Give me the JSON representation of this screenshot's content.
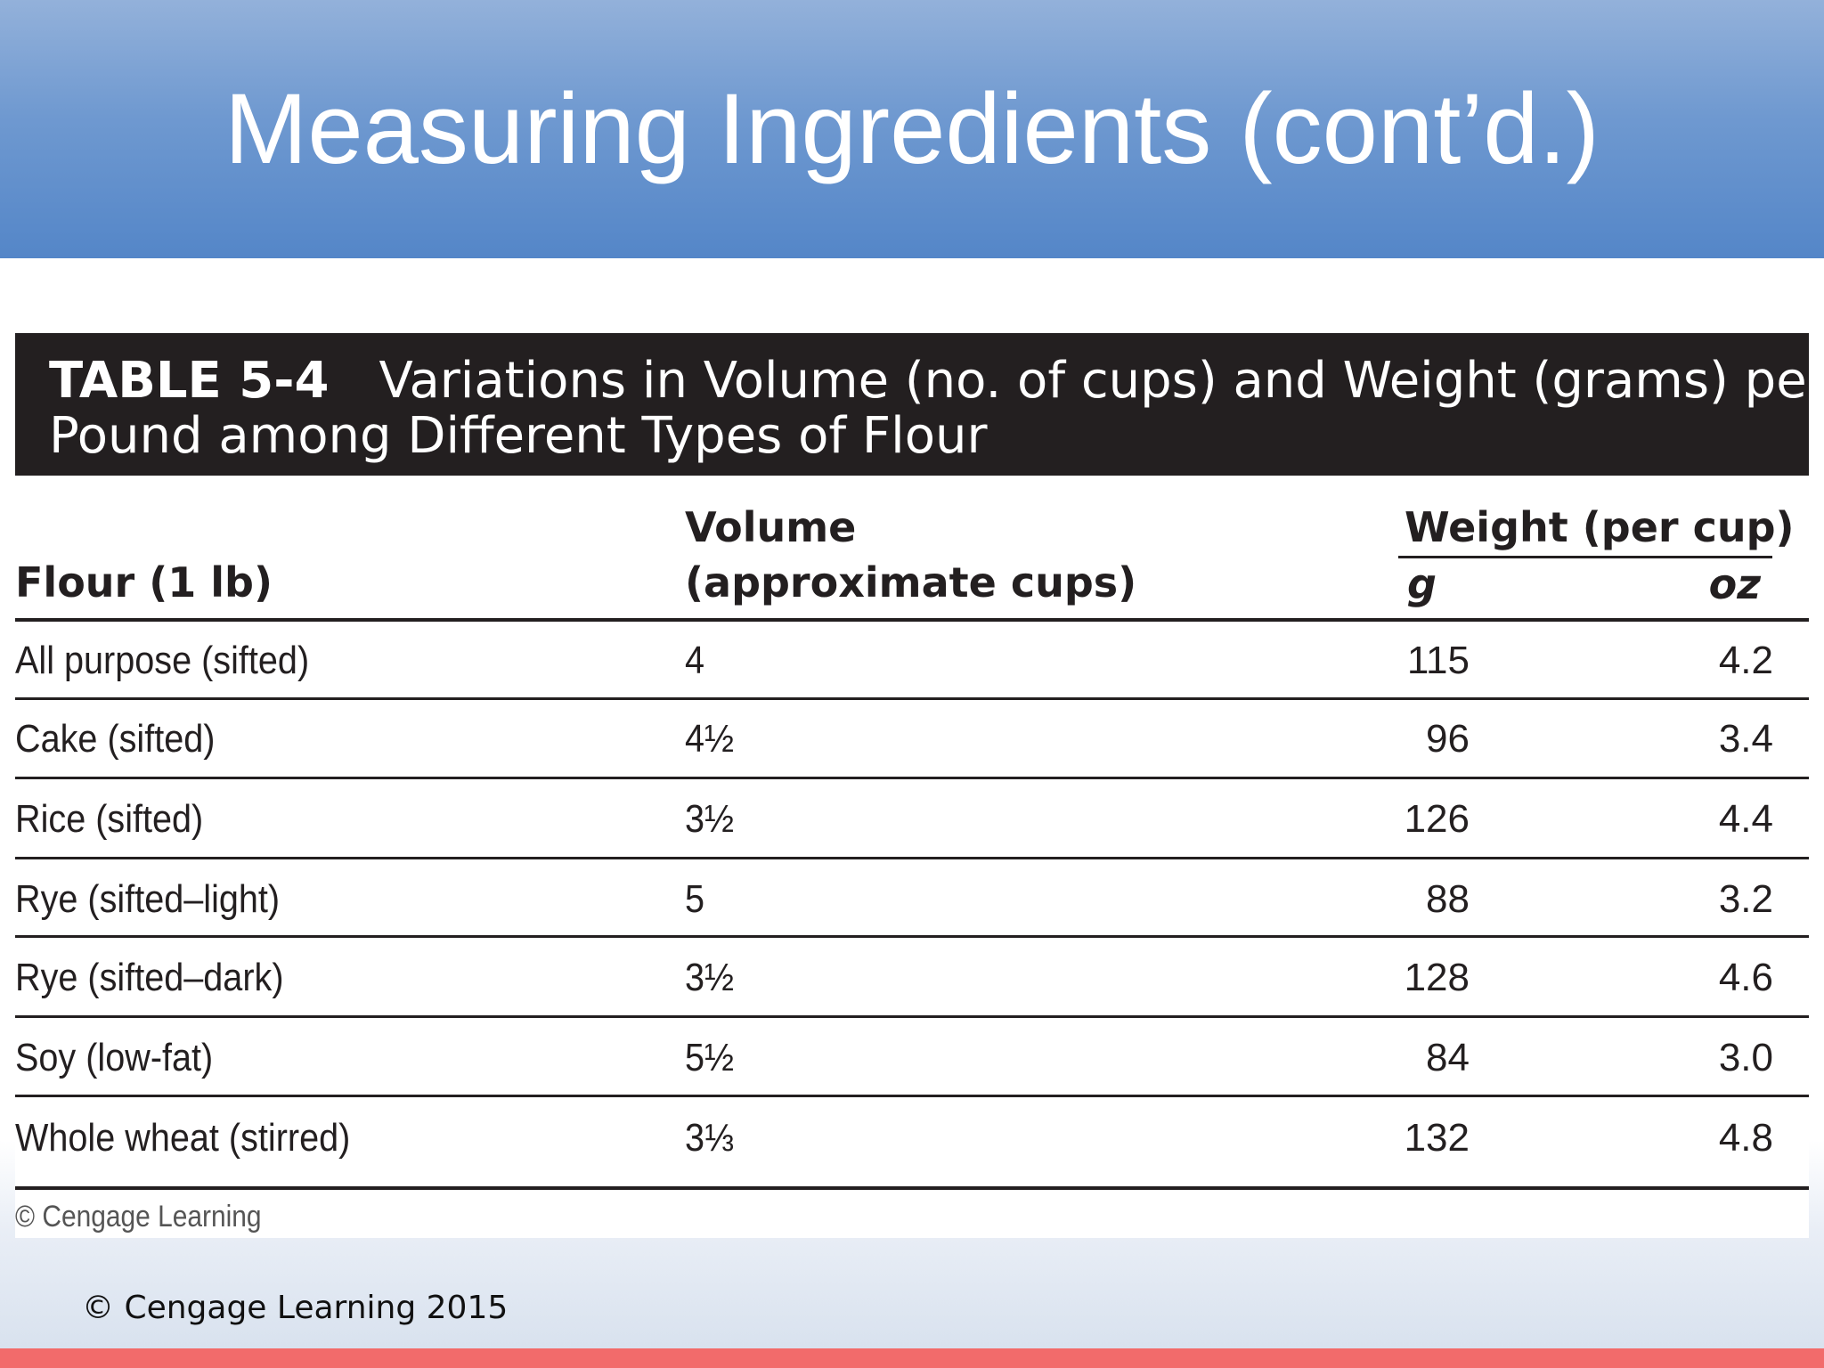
{
  "slide": {
    "title": "Measuring Ingredients (cont’d.)",
    "footer": "© Cengage Learning 2015"
  },
  "table": {
    "label": "TABLE 5-4",
    "title_line1": "Variations in Volume (no. of cups) and Weight (grams) per",
    "title_line2": "Pound among Different Types of Flour",
    "headers": {
      "flour": "Flour (1 lb)",
      "volume_line1": "Volume",
      "volume_line2": "(approximate cups)",
      "weight_group": "Weight (per cup)",
      "g": "g",
      "oz": "oz"
    },
    "rows": [
      {
        "flour": "All purpose (sifted)",
        "volume": "4",
        "g": "115",
        "oz": "4.2"
      },
      {
        "flour": "Cake (sifted)",
        "volume": "4½",
        "g": "96",
        "oz": "3.4"
      },
      {
        "flour": "Rice (sifted)",
        "volume": "3½",
        "g": "126",
        "oz": "4.4"
      },
      {
        "flour": "Rye (sifted–light)",
        "volume": "5",
        "g": "88",
        "oz": "3.2"
      },
      {
        "flour": "Rye (sifted–dark)",
        "volume": "3½",
        "g": "128",
        "oz": "4.6"
      },
      {
        "flour": "Soy (low-fat)",
        "volume": "5½",
        "g": "84",
        "oz": "3.0"
      },
      {
        "flour": "Whole wheat (stirred)",
        "volume": "3⅓",
        "g": "132",
        "oz": "4.8"
      }
    ],
    "source": "© Cengage Learning"
  }
}
